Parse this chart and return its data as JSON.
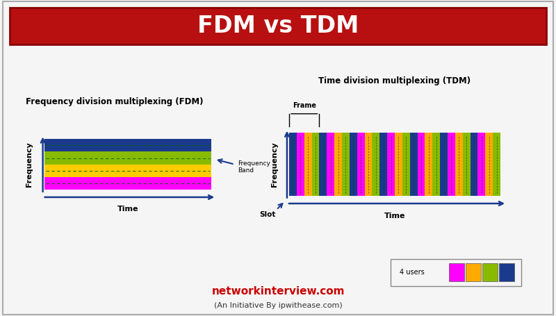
{
  "title": "FDM vs TDM",
  "title_bg": "#b81010",
  "title_color": "#ffffff",
  "fdm_title": "Frequency division multiplexing (FDM)",
  "tdm_title": "Time division multiplexing (TDM)",
  "fdm_colors": [
    "#ff00ff",
    "#ffcc00",
    "#88bb00",
    "#1a3a8c"
  ],
  "tdm_colors": [
    "#1a3a8c",
    "#ff00ff",
    "#ffaa00",
    "#88bb00"
  ],
  "fdm_ylabel": "Frequency",
  "fdm_xlabel": "Time",
  "fdm_band_label": "Frequency\nBand",
  "tdm_ylabel": "Frequency",
  "tdm_xlabel": "Time",
  "tdm_frame_label": "Frame",
  "tdm_slot_label": "Slot",
  "legend_label": "4 users",
  "legend_colors": [
    "#ff00ff",
    "#ffaa00",
    "#88bb00",
    "#1a3a8c"
  ],
  "footer_main": "networkinterview.com",
  "footer_sub": "(An Initiative By ipwithease.com)",
  "panel_bg": "#f5f5f5",
  "diagram_bg": "#ffffff",
  "arrow_color": "#1a3a8c",
  "n_tdm_frames": 7,
  "n_tdm_users": 4
}
